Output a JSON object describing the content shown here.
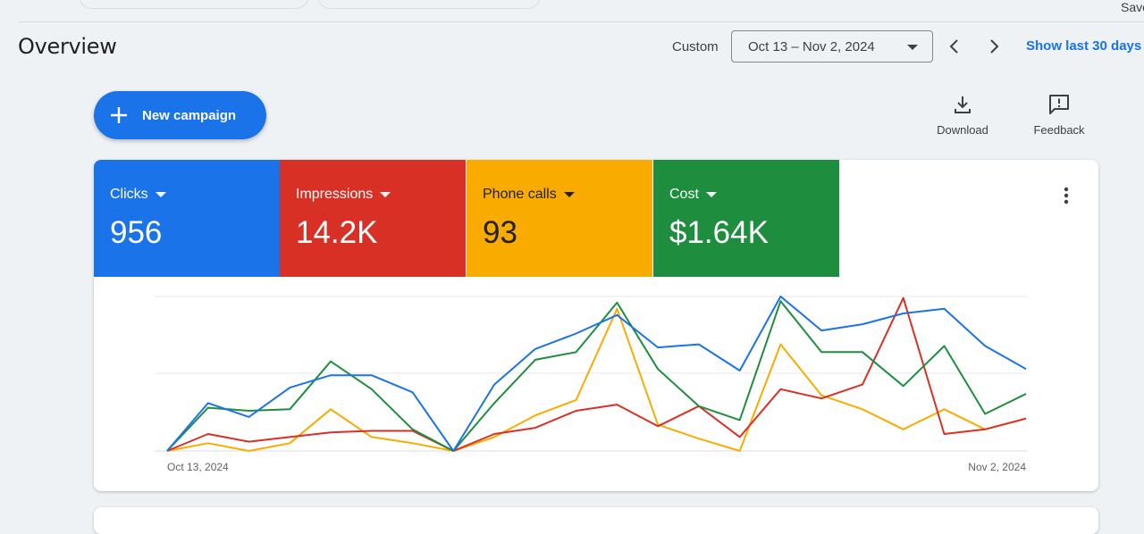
{
  "topbar": {
    "save_label": "Save"
  },
  "header": {
    "title": "Overview",
    "range_type": "Custom",
    "date_range": "Oct 13 – Nov 2, 2024",
    "show_last_label": "Show last 30 days"
  },
  "actions": {
    "new_campaign": "New campaign",
    "download": "Download",
    "feedback": "Feedback"
  },
  "metrics": [
    {
      "name": "Clicks",
      "value": "956",
      "color": "#1a73e8",
      "text_color": "#ffffff"
    },
    {
      "name": "Impressions",
      "value": "14.2K",
      "color": "#d93025",
      "text_color": "#ffffff"
    },
    {
      "name": "Phone calls",
      "value": "93",
      "color": "#f9ab00",
      "text_color": "#202124"
    },
    {
      "name": "Cost",
      "value": "$1.64K",
      "color": "#1e8e3e",
      "text_color": "#ffffff"
    }
  ],
  "chart_data": {
    "type": "line",
    "x_start_label": "Oct 13, 2024",
    "x_end_label": "Nov 2, 2024",
    "ylim": [
      0,
      100
    ],
    "grid": true,
    "series": [
      {
        "color": "#1a73e8",
        "values": [
          0,
          31,
          22,
          41,
          49,
          49,
          38,
          0,
          43,
          66,
          76,
          88,
          67,
          69,
          52,
          100,
          78,
          82,
          89,
          92,
          68,
          53
        ]
      },
      {
        "color": "#d93025",
        "values": [
          0,
          11,
          6,
          9,
          12,
          13,
          13,
          0,
          11,
          15,
          26,
          30,
          16,
          29,
          9,
          40,
          34,
          43,
          99,
          11,
          14,
          21
        ]
      },
      {
        "color": "#f9ab00",
        "values": [
          0,
          5,
          0,
          5,
          27,
          9,
          5,
          0,
          9,
          23,
          33,
          92,
          17,
          8,
          0,
          69,
          36,
          27,
          14,
          27,
          14,
          21
        ]
      },
      {
        "color": "#1e8e3e",
        "values": [
          0,
          28,
          26,
          27,
          58,
          40,
          14,
          0,
          31,
          59,
          64,
          96,
          53,
          29,
          20,
          97,
          64,
          64,
          42,
          68,
          24,
          37
        ]
      }
    ]
  }
}
